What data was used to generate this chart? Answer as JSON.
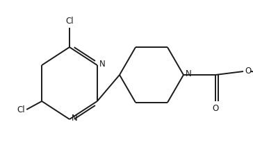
{
  "bg_color": "#ffffff",
  "line_color": "#1a1a1a",
  "line_width": 1.4,
  "font_size": 8.5,
  "figsize": [
    3.64,
    2.38
  ],
  "dpi": 100,
  "xlim": [
    0,
    364
  ],
  "ylim": [
    0,
    238
  ]
}
